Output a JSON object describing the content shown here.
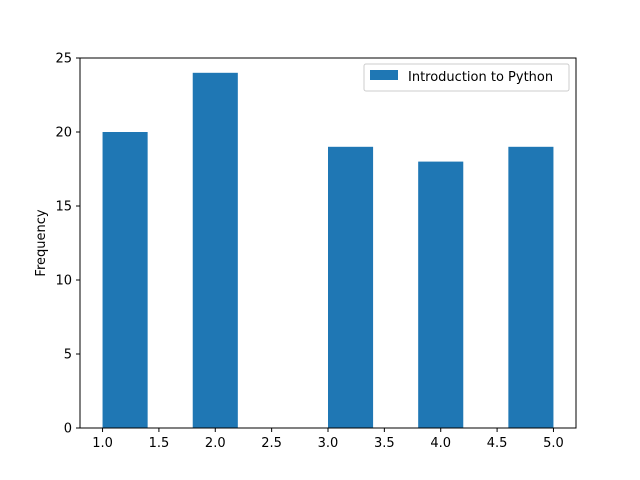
{
  "chart_data": {
    "type": "bar",
    "title": "",
    "xlabel": "",
    "ylabel": "Frequency",
    "xlim": [
      0.8,
      5.2
    ],
    "ylim": [
      0,
      25
    ],
    "xticks": [
      1.0,
      1.5,
      2.0,
      2.5,
      3.0,
      3.5,
      4.0,
      4.5,
      5.0
    ],
    "xtick_labels": [
      "1.0",
      "1.5",
      "2.0",
      "2.5",
      "3.0",
      "3.5",
      "4.0",
      "4.5",
      "5.0"
    ],
    "yticks": [
      0,
      5,
      10,
      15,
      20,
      25
    ],
    "ytick_labels": [
      "0",
      "5",
      "10",
      "15",
      "20",
      "25"
    ],
    "grid": false,
    "legend_position": "top-right",
    "series": [
      {
        "name": "Introduction to Python",
        "color": "#1f77b4",
        "bins": [
          {
            "start": 1.0,
            "end": 1.4,
            "value": 20
          },
          {
            "start": 1.4,
            "end": 1.8,
            "value": 0
          },
          {
            "start": 1.8,
            "end": 2.2,
            "value": 24
          },
          {
            "start": 2.2,
            "end": 2.6,
            "value": 0
          },
          {
            "start": 2.6,
            "end": 3.0,
            "value": 0
          },
          {
            "start": 3.0,
            "end": 3.4,
            "value": 19
          },
          {
            "start": 3.4,
            "end": 3.8,
            "value": 0
          },
          {
            "start": 3.8,
            "end": 4.2,
            "value": 18
          },
          {
            "start": 4.2,
            "end": 4.6,
            "value": 0
          },
          {
            "start": 4.6,
            "end": 5.0,
            "value": 19
          }
        ]
      }
    ]
  }
}
